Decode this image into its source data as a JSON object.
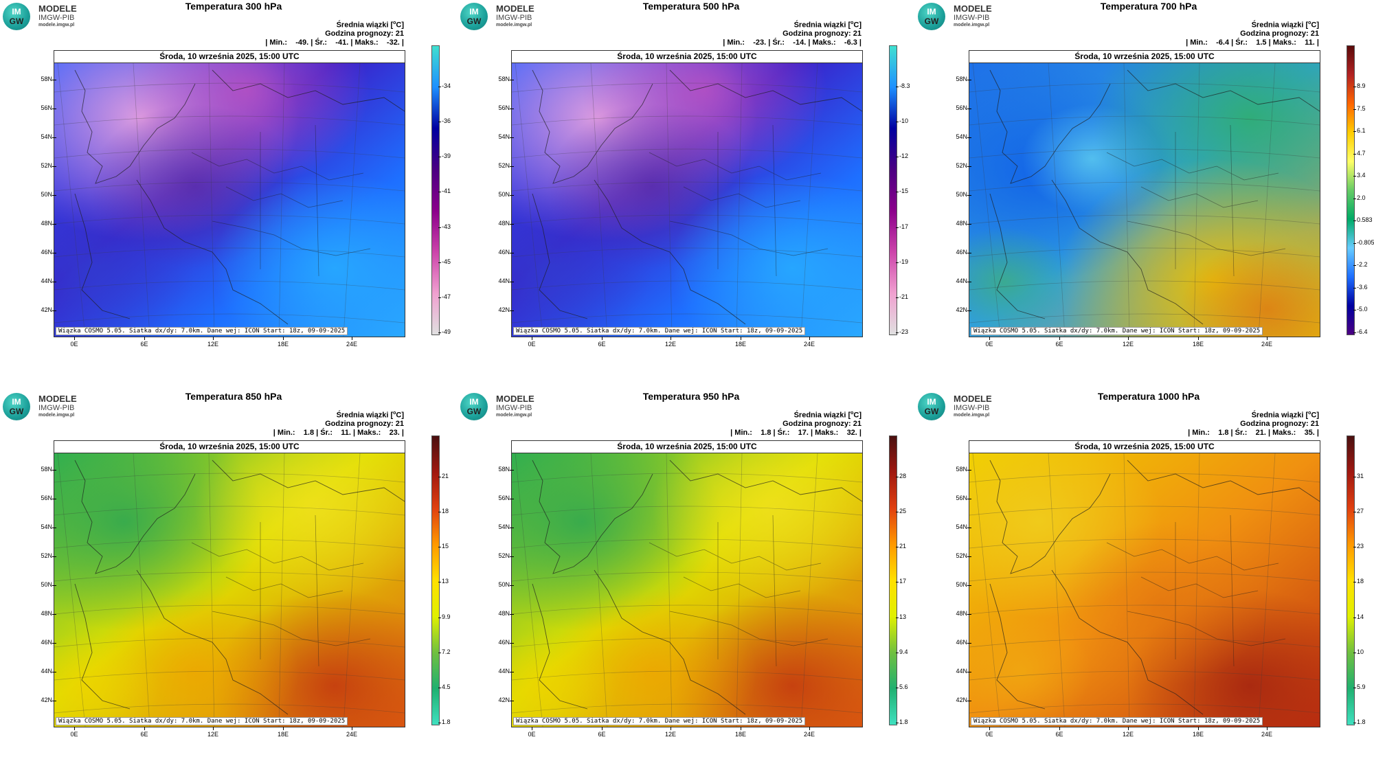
{
  "logo": {
    "mark_top": "IM",
    "mark_bottom": "GW",
    "brand": "MODELE",
    "sub": "IMGW-PIB",
    "url": "modele.imgw.pl"
  },
  "common": {
    "mean_label": "Średnia wiązki [",
    "mean_unit": "o",
    "mean_unit_tail": "C]",
    "forecast_hour": "Godzina prognozy: 21",
    "date": "Środa, 10 września 2025, 15:00 UTC",
    "footer": "Wiązka COSMO 5.05. Siatka dx/dy: 7.0km. Dane wej: ICON Start: 18z, 09-09-2025",
    "lat_labels": [
      "58N",
      "56N",
      "54N",
      "52N",
      "50N",
      "48N",
      "46N",
      "44N",
      "42N"
    ],
    "lon_labels": [
      "0E",
      "6E",
      "12E",
      "18E",
      "24E"
    ]
  },
  "panels": [
    {
      "title": "Temperatura 300 hPa",
      "stats": "| Min.:    -49. | Śr.:    -41. | Maks.:    -32. |",
      "stats_values": {
        "min": -49,
        "mean": -41,
        "max": -32
      },
      "colorbar_ticks": [
        "-34",
        "-36",
        "-39",
        "-41",
        "-43",
        "-45",
        "-47",
        "-49"
      ],
      "palette": "cold"
    },
    {
      "title": "Temperatura 500 hPa",
      "stats": "| Min.:    -23. | Śr.:    -14. | Maks.:    -6.3 |",
      "stats_values": {
        "min": -23,
        "mean": -14,
        "max": -6.3
      },
      "colorbar_ticks": [
        "-8.3",
        "-10",
        "-12",
        "-15",
        "-17",
        "-19",
        "-21",
        "-23"
      ],
      "palette": "cold"
    },
    {
      "title": "Temperatura 700 hPa",
      "stats": "| Min.:    -6.4 | Śr.:    1.5 | Maks.:    11. |",
      "stats_values": {
        "min": -6.4,
        "mean": 1.5,
        "max": 11
      },
      "colorbar_ticks": [
        "8.9",
        "7.5",
        "6.1",
        "4.7",
        "3.4",
        "2.0",
        "0.583",
        "-0.805",
        "-2.2",
        "-3.6",
        "-5.0",
        "-6.4"
      ],
      "palette": "mid"
    },
    {
      "title": "Temperatura 850 hPa",
      "stats": "| Min.:    1.8 | Śr.:    11. | Maks.:    23. |",
      "stats_values": {
        "min": 1.8,
        "mean": 11,
        "max": 23
      },
      "colorbar_ticks": [
        "21",
        "18",
        "15",
        "13",
        "9.9",
        "7.2",
        "4.5",
        "1.8"
      ],
      "palette": "warm"
    },
    {
      "title": "Temperatura 950 hPa",
      "stats": "| Min.:    1.8 | Śr.:    17. | Maks.:    32. |",
      "stats_values": {
        "min": 1.8,
        "mean": 17,
        "max": 32
      },
      "colorbar_ticks": [
        "28",
        "25",
        "21",
        "17",
        "13",
        "9.4",
        "5.6",
        "1.8"
      ],
      "palette": "warm"
    },
    {
      "title": "Temperatura 1000 hPa",
      "stats": "| Min.:    1.8 | Śr.:    21. | Maks.:    35. |",
      "stats_values": {
        "min": 1.8,
        "mean": 21,
        "max": 35
      },
      "colorbar_ticks": [
        "31",
        "27",
        "23",
        "18",
        "14",
        "10",
        "5.9",
        "1.8"
      ],
      "palette": "hot"
    }
  ],
  "colors": {
    "cold_bar": [
      "#40e0d0",
      "#1e90ff",
      "#0000a0",
      "#4b0082",
      "#8b008b",
      "#cc44aa",
      "#f0a0d0",
      "#e0e0e0"
    ],
    "mid_bar": [
      "#5a0a0a",
      "#b22222",
      "#ff6600",
      "#ffcc00",
      "#ffff66",
      "#66cc66",
      "#00aa66",
      "#66ccff",
      "#1e6fff",
      "#0000a0",
      "#4b0082"
    ],
    "warm_bar": [
      "#4a1010",
      "#a01810",
      "#e04010",
      "#ff9900",
      "#ffe000",
      "#e0f000",
      "#70c040",
      "#20b070",
      "#40e0c0"
    ]
  }
}
